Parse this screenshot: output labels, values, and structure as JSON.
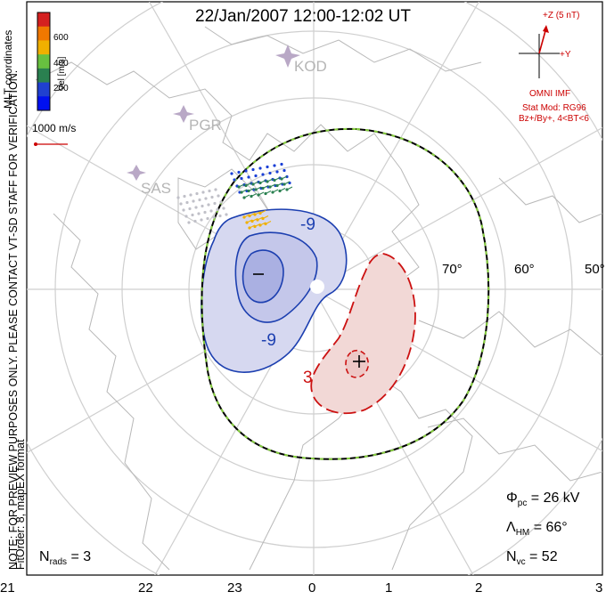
{
  "title": "22/Jan/2007 12:00-12:02 UT",
  "left_note_1": "NOTE: FOR PREVIEW PURPOSES ONLY. PLEASE CONTACT VT-SD STAFF FOR VERIFICATION.",
  "left_note_2": "FitOrder: 8, mapEX format",
  "colorbar": {
    "label": "Vel [m/s]",
    "ticks": [
      "600",
      "400",
      "200"
    ],
    "colors": [
      "#d42020",
      "#f07800",
      "#f0b000",
      "#68c040",
      "#2a8050",
      "#2040d0",
      "#0010f0"
    ]
  },
  "coords_label": "MLT coordinates",
  "vector_scale": "1000 m/s",
  "imf": {
    "z_label": "+Z (5 nT)",
    "y_label": "+Y",
    "source": "OMNI IMF",
    "model": "Stat Mod: RG96",
    "condition": "Bz+/By+, 4<BT<6"
  },
  "stations": [
    "KOD",
    "PGR",
    "SAS"
  ],
  "lat_labels": [
    "70°",
    "60°",
    "50°"
  ],
  "contour_labels": [
    "-9",
    "-9",
    "3"
  ],
  "extrema": {
    "min_symbol": "−",
    "max_symbol": "+"
  },
  "stats": {
    "phi_sym": "Φ",
    "phi_sub": "pc",
    "phi_val": " = 26 kV",
    "lambda_sym": "Λ",
    "lambda_sub": "HM",
    "lambda_val": " = 66°",
    "nvc_sym": "N",
    "nvc_sub": "vc",
    "nvc_val": " = 52",
    "nrads_sym": "N",
    "nrads_sub": "rads",
    "nrads_val": " = 3"
  },
  "mlt_hours": [
    "21",
    "22",
    "23",
    "0",
    "1",
    "2",
    "3"
  ]
}
